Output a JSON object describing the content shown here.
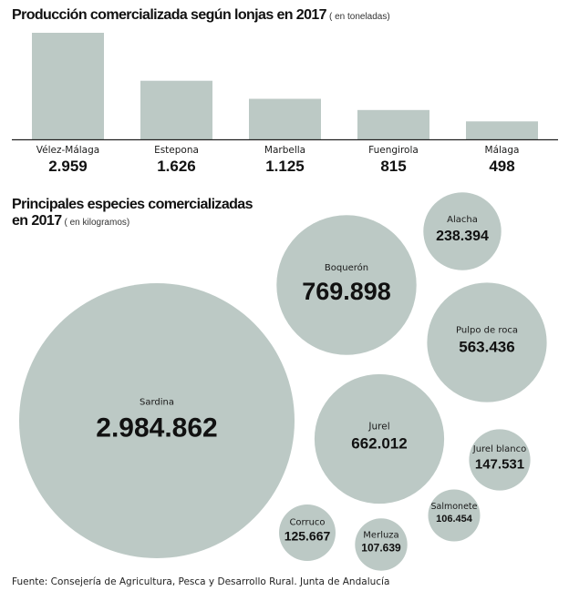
{
  "charts": {
    "production": {
      "title": "Producción comercializada según lonjas en 2017",
      "unit": "( en toneladas)"
    },
    "species": {
      "title_line1": "Principales especies comercializadas",
      "title_line2": "en 2017",
      "unit": "( en kilogramos)"
    }
  },
  "footer": "Fuente: Consejería de Agricultura, Pesca y Desarrollo Rural. Junta de Andalucía",
  "colors": {
    "mark_fill": "#bcc9c5",
    "axis": "#222222",
    "text": "#1a1a1a"
  },
  "chart_data": [
    {
      "type": "bar",
      "title": "Producción comercializada según lonjas en 2017",
      "unit": "( en toneladas)",
      "categories": [
        "Vélez-Málaga",
        "Estepona",
        "Marbella",
        "Fuengirola",
        "Málaga"
      ],
      "values": [
        2959,
        1626,
        1125,
        815,
        498
      ],
      "value_labels": [
        "2.959",
        "1.626",
        "1.125",
        "815",
        "498"
      ],
      "xlabel": "",
      "ylabel": ""
    },
    {
      "type": "bubble",
      "title": "Principales especies comercializadas en 2017",
      "unit": "( en kilogramos)",
      "categories": [
        "Sardina",
        "Boquerón",
        "Jurel",
        "Pulpo de roca",
        "Alacha",
        "Jurel blanco",
        "Corruco",
        "Merluza",
        "Salmonete"
      ],
      "values": [
        2984862,
        769898,
        662012,
        563436,
        238394,
        147531,
        125667,
        107639,
        106454
      ],
      "value_labels": [
        "2.984.862",
        "769.898",
        "662.012",
        "563.436",
        "238.394",
        "147.531",
        "125.667",
        "107.639",
        "106.454"
      ]
    }
  ]
}
